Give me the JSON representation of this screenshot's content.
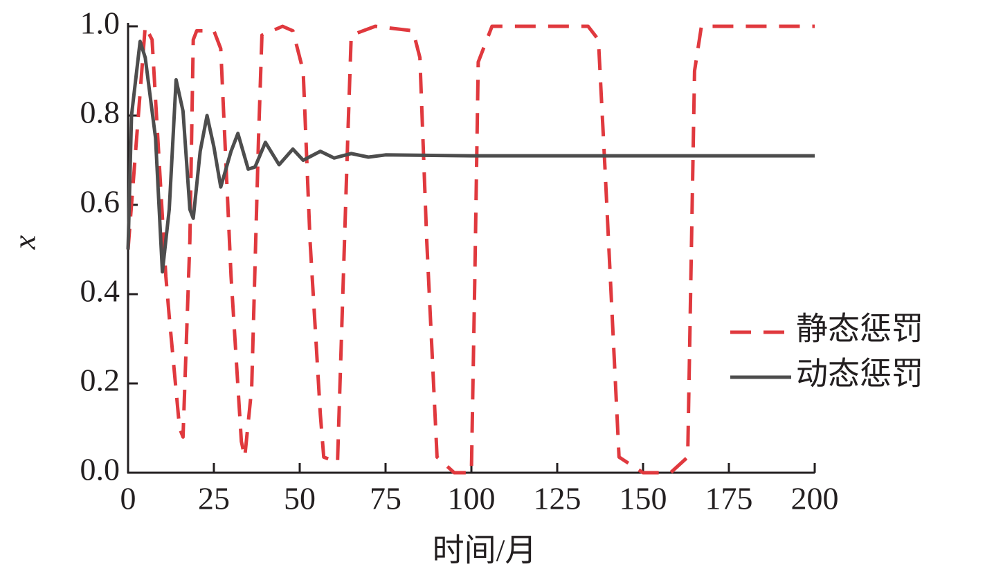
{
  "chart_data": {
    "type": "line",
    "xlabel": "时间/月",
    "ylabel": "x",
    "xlim": [
      0,
      200
    ],
    "xticks": [
      0,
      25,
      50,
      75,
      100,
      125,
      150,
      175,
      200
    ],
    "ylim": [
      0,
      1
    ],
    "yticks": [
      {
        "value": 0,
        "label": "0.0"
      },
      {
        "value": 0.2,
        "label": "0.2"
      },
      {
        "value": 0.4,
        "label": "0.4"
      },
      {
        "value": 0.6,
        "label": "0.6"
      },
      {
        "value": 0.8,
        "label": "0.8"
      },
      {
        "value": 1,
        "label": "1.0"
      }
    ],
    "legend": "center right",
    "series": [
      {
        "name": "静态惩罚",
        "color": "#e0393e",
        "dash": true,
        "x": [
          0,
          5,
          7,
          11,
          12,
          15,
          16,
          18,
          19,
          20,
          25,
          27,
          30,
          33,
          34,
          36,
          38,
          39,
          45,
          48,
          51,
          53,
          56,
          57,
          61,
          64,
          65,
          72,
          83,
          85,
          87,
          90,
          95,
          100,
          101,
          102,
          106,
          134,
          137,
          139,
          143,
          150,
          158,
          163,
          165,
          167,
          200
        ],
        "values": [
          0.5,
          1.0,
          0.97,
          0.44,
          0.35,
          0.1,
          0.08,
          0.52,
          0.97,
          0.99,
          0.99,
          0.95,
          0.44,
          0.07,
          0.035,
          0.19,
          0.75,
          0.98,
          1.0,
          0.99,
          0.9,
          0.52,
          0.13,
          0.035,
          0.023,
          0.75,
          0.98,
          1.0,
          0.99,
          0.93,
          0.52,
          0.035,
          0,
          0,
          0.44,
          0.92,
          1.0,
          1.0,
          0.97,
          0.67,
          0.035,
          0,
          0,
          0.035,
          0.9,
          1.0,
          1.0
        ]
      },
      {
        "name": "动态惩罚",
        "color": "#4d4d4d",
        "dash": false,
        "x": [
          0,
          1,
          3.5,
          5,
          8,
          10,
          12,
          14,
          16,
          18,
          19,
          21,
          23,
          25,
          27,
          30,
          32,
          35,
          37,
          40,
          44,
          48,
          51,
          56,
          60,
          65,
          70,
          75,
          100,
          200
        ],
        "values": [
          0.5,
          0.8,
          0.966,
          0.93,
          0.75,
          0.45,
          0.59,
          0.88,
          0.81,
          0.59,
          0.57,
          0.72,
          0.8,
          0.73,
          0.64,
          0.72,
          0.76,
          0.68,
          0.685,
          0.74,
          0.69,
          0.725,
          0.7,
          0.72,
          0.705,
          0.715,
          0.707,
          0.712,
          0.71,
          0.71
        ]
      }
    ]
  }
}
